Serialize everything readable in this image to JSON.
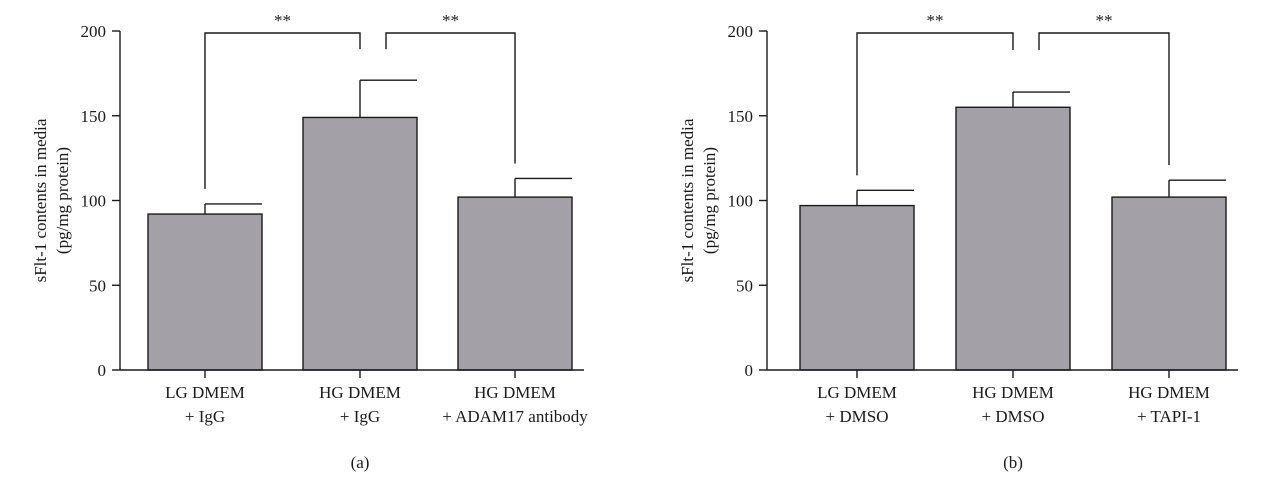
{
  "chart_data": [
    {
      "type": "bar",
      "panel_label": "(a)",
      "ylabel_lines": [
        "sFlt-1 contents in media",
        "(pg/mg protein)"
      ],
      "ylim": [
        0,
        200
      ],
      "yticks": [
        0,
        50,
        100,
        150,
        200
      ],
      "categories": [
        [
          "LG DMEM",
          "+ IgG"
        ],
        [
          "HG DMEM",
          "+ IgG"
        ],
        [
          "HG DMEM",
          "+ ADAM17 antibody"
        ]
      ],
      "values": [
        92,
        149,
        102
      ],
      "errors": [
        6,
        22,
        11
      ],
      "significance": [
        {
          "from": 0,
          "to": 1,
          "label": "**"
        },
        {
          "from": 1,
          "to": 2,
          "label": "**"
        }
      ],
      "bar_color": "#a3a1a7",
      "grid": false
    },
    {
      "type": "bar",
      "panel_label": "(b)",
      "ylabel_lines": [
        "sFlt-1 contents in media",
        "(pg/mg protein)"
      ],
      "ylim": [
        0,
        200
      ],
      "yticks": [
        0,
        50,
        100,
        150,
        200
      ],
      "categories": [
        [
          "LG DMEM",
          "+ DMSO"
        ],
        [
          "HG DMEM",
          "+ DMSO"
        ],
        [
          "HG DMEM",
          "+ TAPI-1"
        ]
      ],
      "values": [
        97,
        155,
        102
      ],
      "errors": [
        9,
        9,
        10
      ],
      "significance": [
        {
          "from": 0,
          "to": 1,
          "label": "**"
        },
        {
          "from": 1,
          "to": 2,
          "label": "**"
        }
      ],
      "bar_color": "#a3a1a7",
      "grid": false
    }
  ]
}
